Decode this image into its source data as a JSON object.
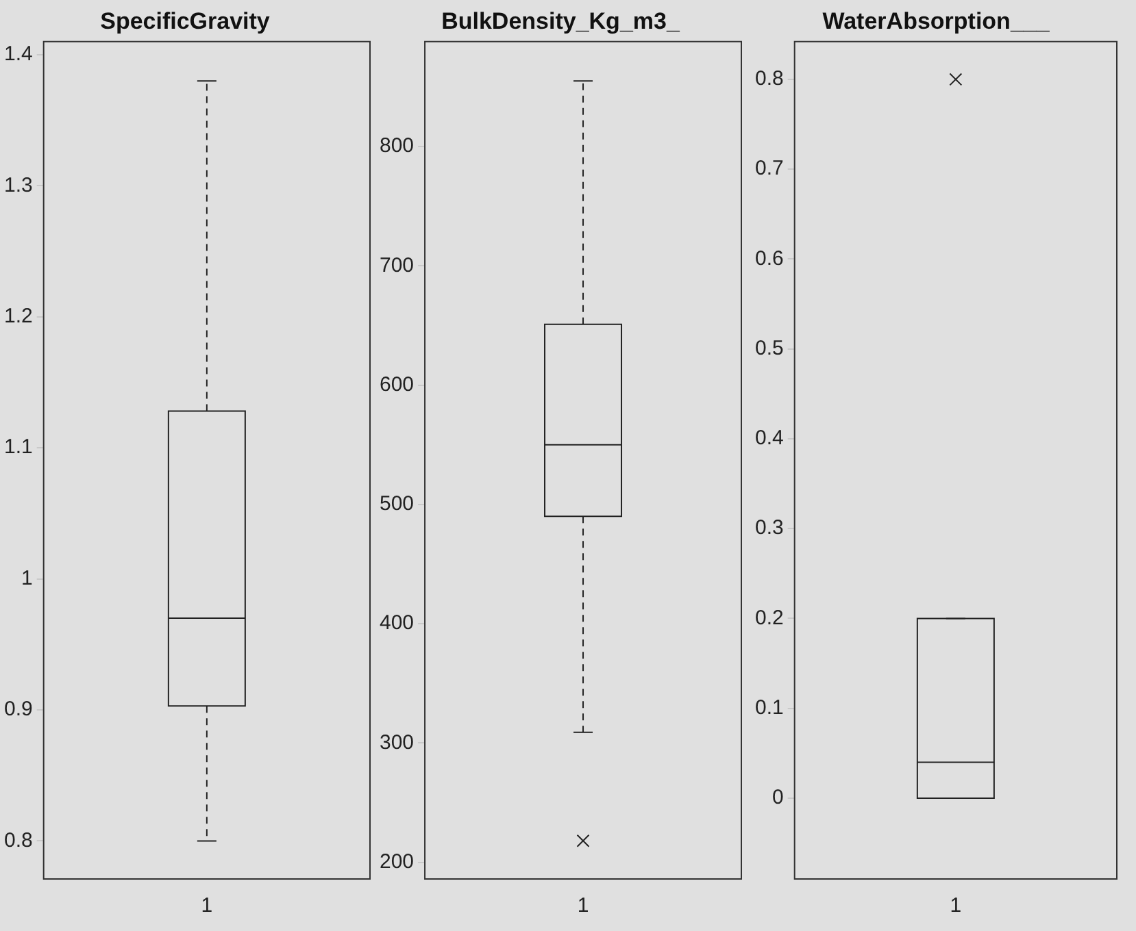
{
  "chart_data": [
    {
      "type": "box",
      "title": "SpecificGravity",
      "categories": [
        "1"
      ],
      "boxes": [
        {
          "low": 0.8,
          "q1": 0.903,
          "median": 0.97,
          "q3": 1.128,
          "high": 1.38
        }
      ],
      "ylim": [
        0.771,
        1.41
      ],
      "yticks": [
        0.8,
        0.9,
        1,
        1.1,
        1.2,
        1.3,
        1.4
      ],
      "grid": false
    },
    {
      "type": "box",
      "title": "BulkDensity_Kg_m3_",
      "categories": [
        "1"
      ],
      "boxes": [
        {
          "low": 309,
          "q1": 490,
          "median": 550,
          "q3": 651,
          "high": 855,
          "outliers": [
            218
          ]
        }
      ],
      "ylim": [
        186,
        888
      ],
      "yticks": [
        200,
        300,
        400,
        500,
        600,
        700,
        800
      ],
      "grid": false,
      "marker": "cross"
    },
    {
      "type": "box",
      "title": "WaterAbsorption___",
      "categories": [
        "1"
      ],
      "boxes": [
        {
          "low": 0,
          "q1": 0,
          "median": 0.04,
          "q3": 0.2,
          "high": 0.2,
          "outliers": [
            0.8
          ]
        }
      ],
      "ylim": [
        -0.09,
        0.842
      ],
      "yticks": [
        0,
        0.1,
        0.2,
        0.3,
        0.4,
        0.5,
        0.6,
        0.7,
        0.8
      ],
      "grid": false,
      "marker": "cross"
    }
  ]
}
